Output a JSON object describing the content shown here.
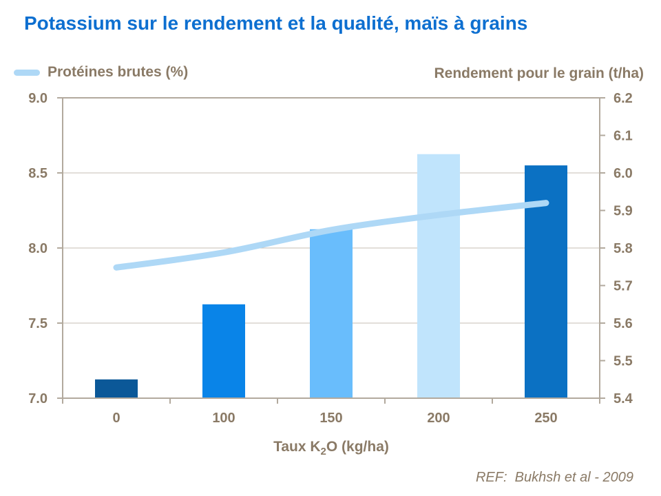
{
  "title": "Potassium sur le rendement et la qualité, maïs à grains",
  "legend": {
    "line_label": "Protéines brutes (%)",
    "bar_label": "Rendement pour le grain (t/ha)"
  },
  "footer": {
    "text": "REF:  Bukhsh et al - 2009"
  },
  "colors": {
    "title_blue": "#0d6fd0",
    "text_brown": "#8a7a66",
    "axis_line": "#b2a99d",
    "grid_line": "#c6beb3",
    "line_series": "#aed8f6",
    "bar_palette": [
      "#0b5898",
      "#0984e8",
      "#69bdfc",
      "#c0e4fc",
      "#0b71c3"
    ]
  },
  "chart_data": {
    "type": "combo-bar-line",
    "categories": [
      "0",
      "100",
      "150",
      "200",
      "250"
    ],
    "xlabel_parts": {
      "pre": "Taux K",
      "sub": "2",
      "post": "O (kg/ha)"
    },
    "series": [
      {
        "name": "Rendement pour le grain (t/ha)",
        "type": "bar",
        "axis": "right",
        "values": [
          5.45,
          5.65,
          5.85,
          6.05,
          6.02
        ],
        "colors": [
          "#0b5898",
          "#0984e8",
          "#69bdfc",
          "#c0e4fc",
          "#0b71c3"
        ]
      },
      {
        "name": "Protéines brutes (%)",
        "type": "line",
        "axis": "left",
        "values": [
          7.87,
          7.97,
          8.12,
          8.22,
          8.3
        ],
        "color": "#aed8f6"
      }
    ],
    "left_axis": {
      "label": "Protéines brutes (%)",
      "min": 7.0,
      "max": 9.0,
      "ticks": [
        "9.0",
        "8.5",
        "8.0",
        "7.5",
        "7.0"
      ]
    },
    "right_axis": {
      "label": "Rendement pour le grain (t/ha)",
      "min": 5.4,
      "max": 6.2,
      "ticks": [
        "6.2",
        "6.1",
        "6.0",
        "5.9",
        "5.8",
        "5.7",
        "5.6",
        "5.5",
        "5.4"
      ]
    },
    "grid": "horizontal",
    "legend_position": "top-left"
  }
}
